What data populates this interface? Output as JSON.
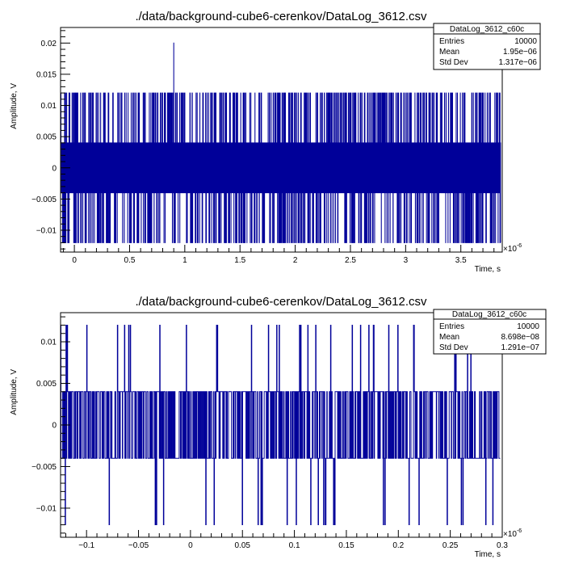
{
  "chart_data": [
    {
      "type": "line",
      "title": "./data/background-cube6-cerenkov/DataLog_3612.csv",
      "xlabel": "Time, s",
      "ylabel": "Amplitude, V",
      "x_exponent_label": "×10",
      "x_exponent_power": "-6",
      "xlim": [
        -0.125,
        3.875
      ],
      "ylim": [
        -0.0135,
        0.0225
      ],
      "x_major_ticks": [
        0,
        0.5,
        1,
        1.5,
        2,
        2.5,
        3,
        3.5
      ],
      "x_tick_labels": [
        "0",
        "0.5",
        "1",
        "1.5",
        "2",
        "2.5",
        "3",
        "3.5"
      ],
      "y_major_ticks": [
        -0.01,
        -0.005,
        0,
        0.005,
        0.01,
        0.015,
        0.02
      ],
      "y_tick_labels": [
        "−0.01",
        "−0.005",
        "0",
        "0.005",
        "0.01",
        "0.015",
        "0.02"
      ],
      "series": [
        {
          "color": "#000099",
          "levels_V": [
            -0.012,
            -0.004,
            0.004,
            0.012
          ],
          "dense_band_V": [
            -0.004,
            0.004
          ],
          "spikes": [
            {
              "x": 0.9,
              "y": 0.02
            }
          ],
          "n_samples": 10000
        }
      ],
      "stats": {
        "name": "DataLog_3612_c60c",
        "rows": [
          {
            "label": "Entries",
            "value": "10000"
          },
          {
            "label": "Mean",
            "value": "1.95e−06"
          },
          {
            "label": "Std Dev",
            "value": "1.317e−06"
          }
        ]
      },
      "grid": false,
      "legend": "top-right"
    },
    {
      "type": "line",
      "title": "./data/background-cube6-cerenkov/DataLog_3612.csv",
      "xlabel": "Time, s",
      "ylabel": "Amplitude, V",
      "x_exponent_label": "×10",
      "x_exponent_power": "-6",
      "xlim": [
        -0.125,
        0.3
      ],
      "ylim": [
        -0.0135,
        0.0135
      ],
      "x_major_ticks": [
        -0.1,
        -0.05,
        0,
        0.05,
        0.1,
        0.15,
        0.2,
        0.25,
        0.3
      ],
      "x_tick_labels": [
        "−0.1",
        "−0.05",
        "0",
        "0.05",
        "0.1",
        "0.15",
        "0.2",
        "0.25",
        "0.3"
      ],
      "y_major_ticks": [
        -0.01,
        -0.005,
        0,
        0.005,
        0.01
      ],
      "y_tick_labels": [
        "−0.01",
        "−0.005",
        "0",
        "0.005",
        "0.01"
      ],
      "series": [
        {
          "color": "#000099",
          "levels_V": [
            -0.012,
            -0.004,
            0.004,
            0.012
          ],
          "dense_band_V": [
            -0.004,
            0.004
          ],
          "n_samples": 1060
        }
      ],
      "stats": {
        "name": "DataLog_3612_c60c",
        "rows": [
          {
            "label": "Entries",
            "value": "10000"
          },
          {
            "label": "Mean",
            "value": "8.698e−08"
          },
          {
            "label": "Std Dev",
            "value": "1.291e−07"
          }
        ]
      },
      "grid": false,
      "legend": "top-right"
    }
  ]
}
